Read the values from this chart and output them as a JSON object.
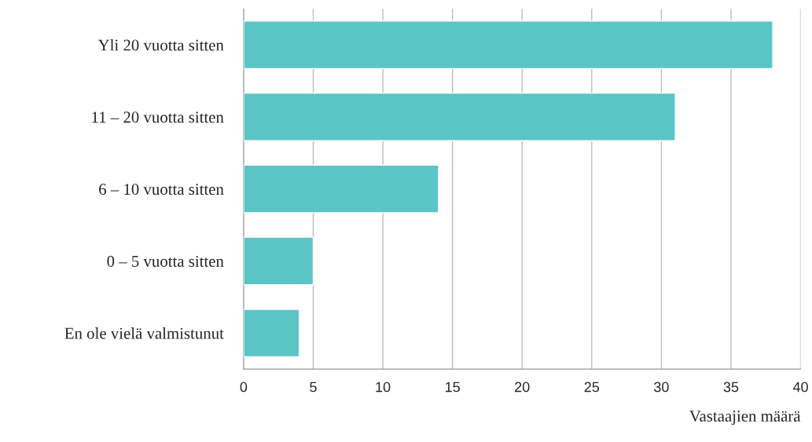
{
  "chart_data": {
    "type": "bar",
    "orientation": "horizontal",
    "xlabel": "Vastaajien määrä",
    "categories": [
      "Yli 20 vuotta sitten",
      "11 – 20 vuotta sitten",
      "6 – 10 vuotta sitten",
      "0 – 5 vuotta sitten",
      "En ole vielä valmistunut"
    ],
    "values": [
      38,
      31,
      14,
      5,
      4
    ],
    "color": "#5bc5c6",
    "xlim": [
      0,
      40
    ],
    "xticks": [
      0,
      5,
      10,
      15,
      20,
      25,
      30,
      35,
      40
    ],
    "grid": "x",
    "legend": false
  }
}
